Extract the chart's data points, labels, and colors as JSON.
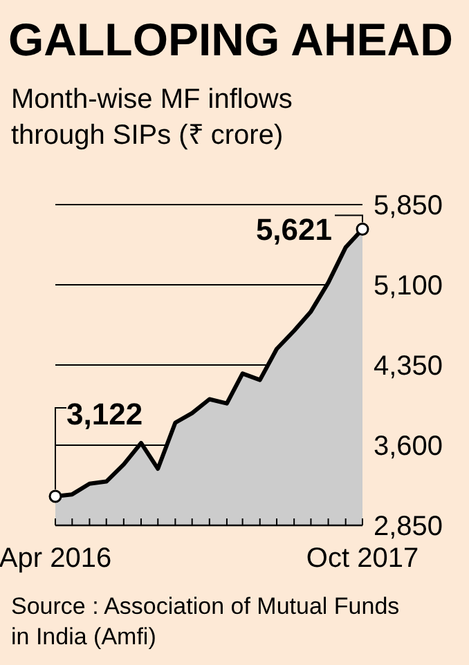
{
  "chart_data": {
    "type": "area",
    "title": "GALLOPING AHEAD",
    "subtitle": "Month-wise MF inflows through SIPs (₹ crore)",
    "x": [
      "2016-04",
      "2016-05",
      "2016-06",
      "2016-07",
      "2016-08",
      "2016-09",
      "2016-10",
      "2016-11",
      "2016-12",
      "2017-01",
      "2017-02",
      "2017-03",
      "2017-04",
      "2017-05",
      "2017-06",
      "2017-07",
      "2017-08",
      "2017-09",
      "2017-10"
    ],
    "series": [
      {
        "color": "#000000",
        "values": [
          3122,
          3140,
          3240,
          3260,
          3420,
          3620,
          3380,
          3810,
          3900,
          4030,
          3990,
          4270,
          4210,
          4500,
          4670,
          4850,
          5120,
          5450,
          5621
        ]
      }
    ],
    "ylim": [
      2850,
      5850
    ],
    "yticks": [
      {
        "value": 2850,
        "label": "2,850"
      },
      {
        "value": 3600,
        "label": "3,600"
      },
      {
        "value": 4350,
        "label": "4,350"
      },
      {
        "value": 5100,
        "label": "5,100"
      },
      {
        "value": 5850,
        "label": "5,850"
      }
    ],
    "xlim": [
      "2016-04",
      "2017-10"
    ],
    "xticks": [
      {
        "value": "2016-04",
        "label": "Apr 2016"
      },
      {
        "value": "2016-05",
        "label": null
      },
      {
        "value": "2016-06",
        "label": null
      },
      {
        "value": "2016-07",
        "label": null
      },
      {
        "value": "2016-08",
        "label": null
      },
      {
        "value": "2016-09",
        "label": null
      },
      {
        "value": "2016-10",
        "label": null
      },
      {
        "value": "2016-11",
        "label": null
      },
      {
        "value": "2016-12",
        "label": null
      },
      {
        "value": "2017-01",
        "label": null
      },
      {
        "value": "2017-02",
        "label": null
      },
      {
        "value": "2017-03",
        "label": null
      },
      {
        "value": "2017-04",
        "label": null
      },
      {
        "value": "2017-05",
        "label": null
      },
      {
        "value": "2017-06",
        "label": null
      },
      {
        "value": "2017-07",
        "label": null
      },
      {
        "value": "2017-08",
        "label": null
      },
      {
        "value": "2017-09",
        "label": null
      },
      {
        "value": "2017-10",
        "label": "Oct 2017"
      }
    ],
    "grid": "y",
    "annotations": [
      {
        "text": "3,122",
        "x": "2016-04",
        "y": 3122
      },
      {
        "text": "5,621",
        "x": "2017-10",
        "y": 5621
      },
      "Source : Association of Mutual Funds in India (Amfi)"
    ]
  }
}
